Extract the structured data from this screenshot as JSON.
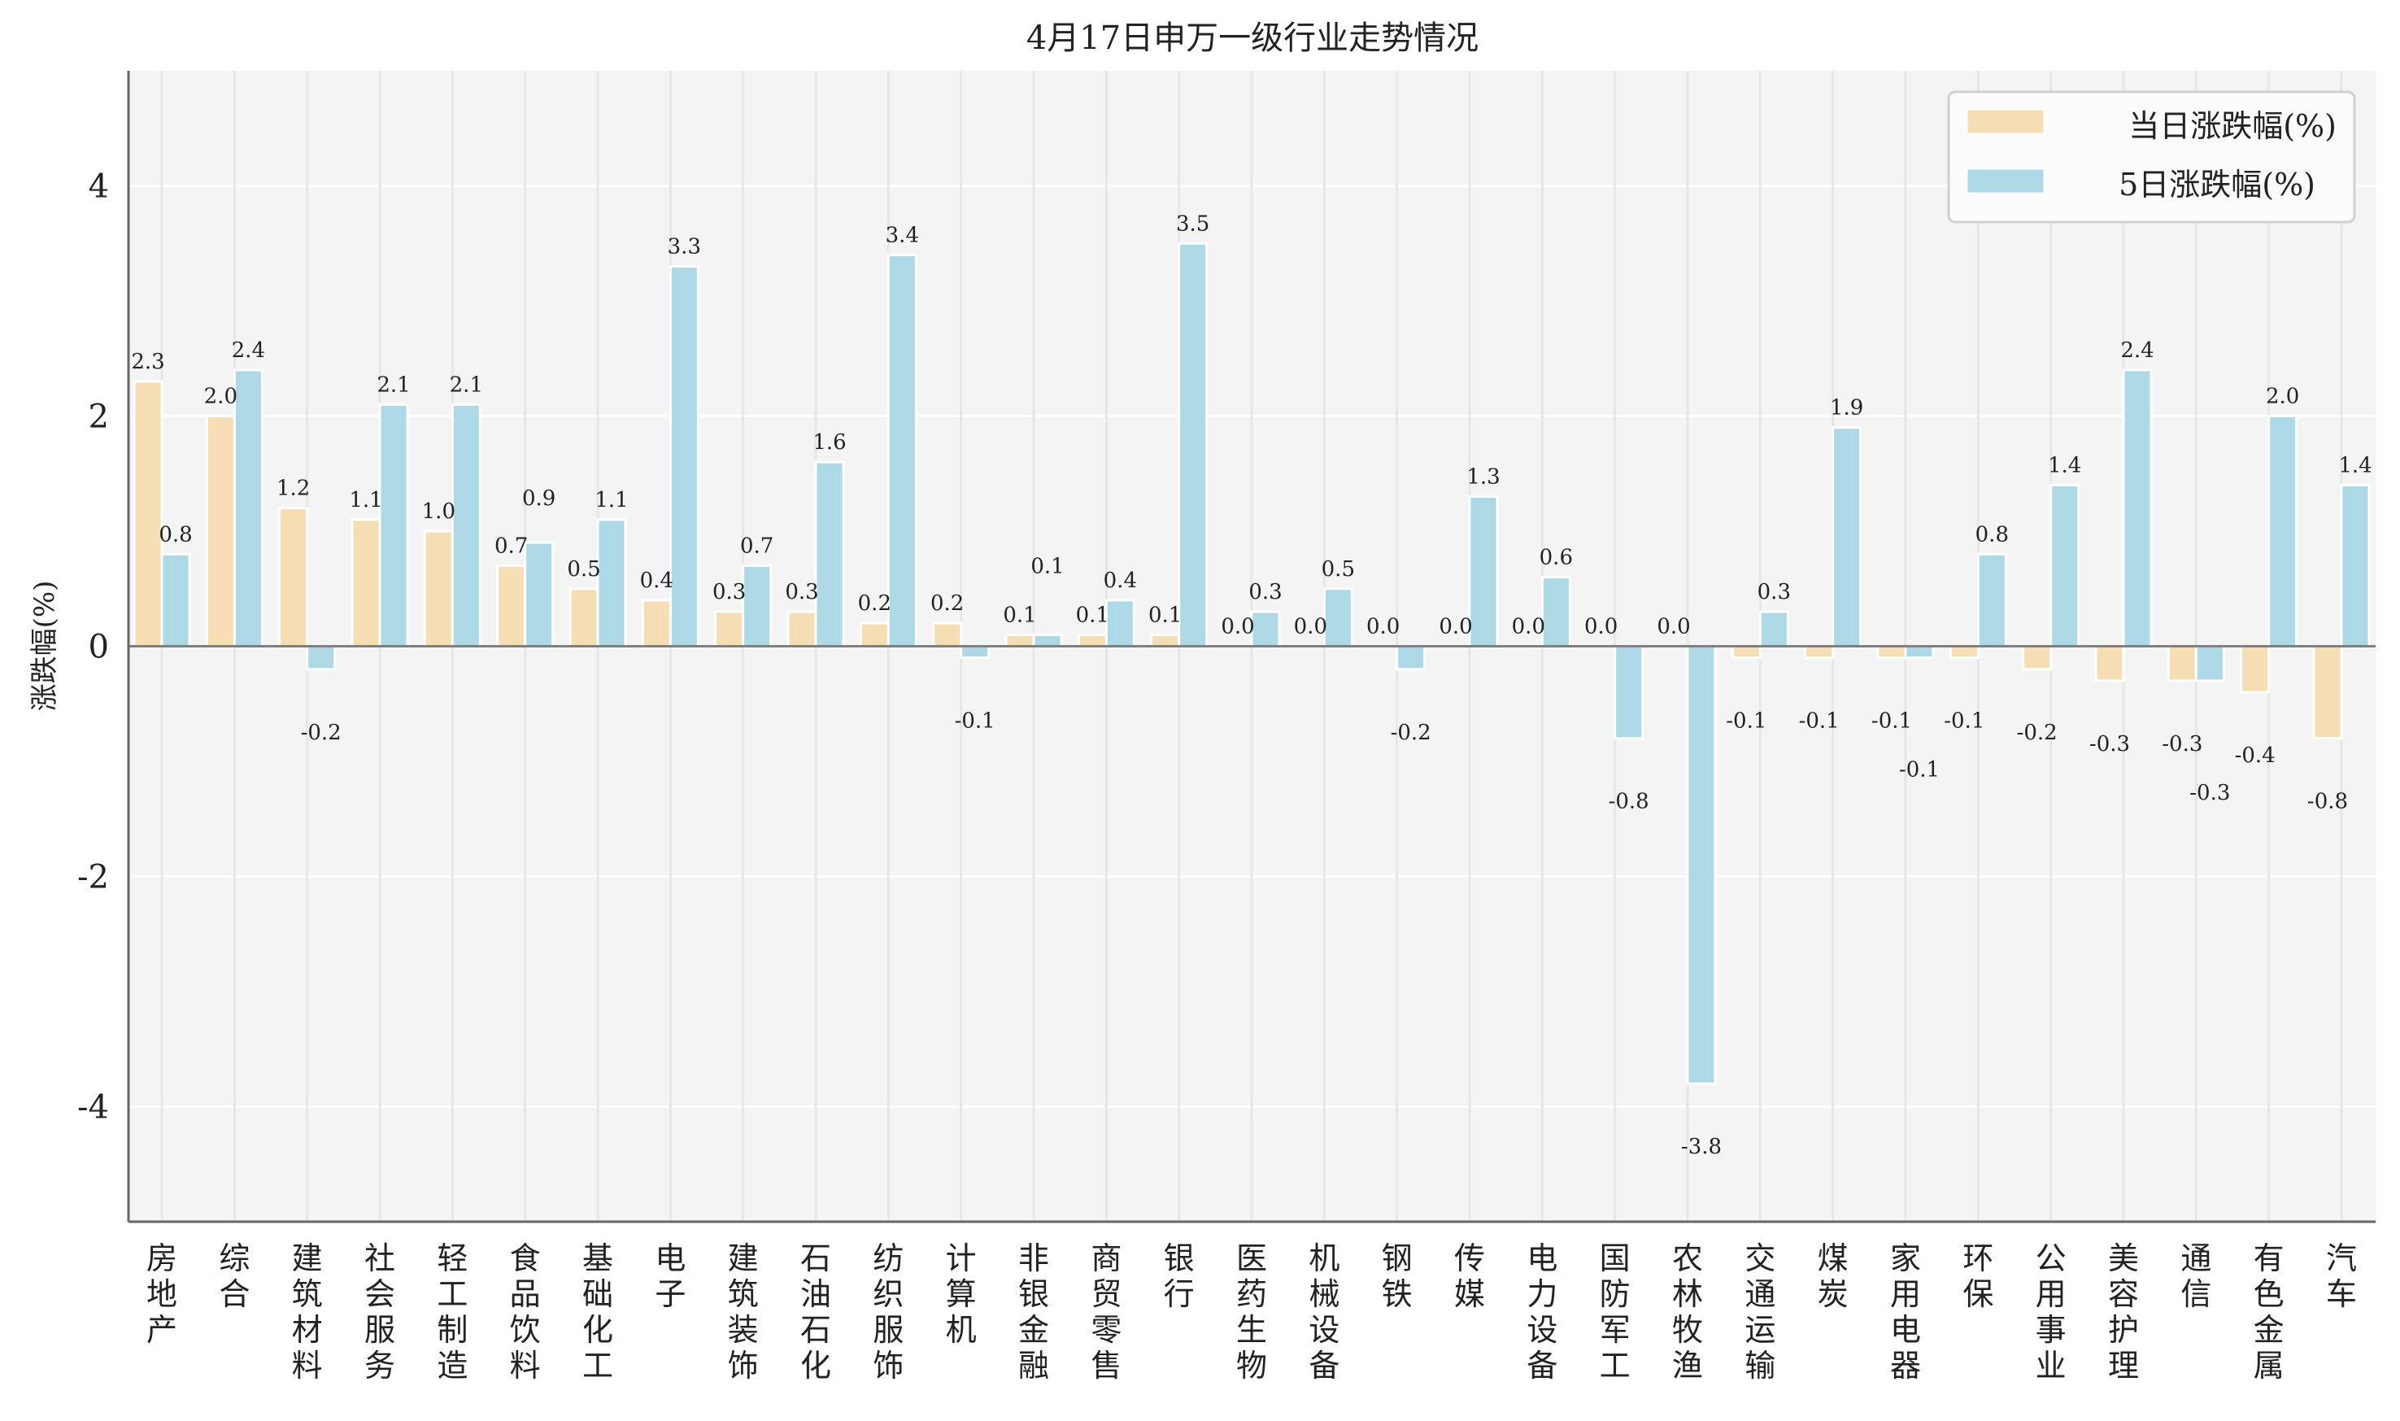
{
  "chart_data": {
    "type": "bar",
    "title": "4月17日申万一级行业走势情况",
    "xlabel": "",
    "ylabel": "涨跌幅(%)",
    "ylim": [
      -5,
      5
    ],
    "yticks": [
      -4,
      -2,
      0,
      2,
      4
    ],
    "grid": true,
    "legend_position": "top-right",
    "categories": [
      "房地产",
      "综合",
      "建筑材料",
      "社会服务",
      "轻工制造",
      "食品饮料",
      "基础化工",
      "电子",
      "建筑装饰",
      "石油石化",
      "纺织服饰",
      "计算机",
      "非银金融",
      "商贸零售",
      "银行",
      "医药生物",
      "机械设备",
      "钢铁",
      "传媒",
      "电力设备",
      "国防军工",
      "农林牧渔",
      "交通运输",
      "煤炭",
      "家用电器",
      "环保",
      "公用事业",
      "美容护理",
      "通信",
      "有色金属",
      "汽车"
    ],
    "series": [
      {
        "name": "当日涨跌幅(%)",
        "color": "#f5deb3",
        "values": [
          2.3,
          2.0,
          1.2,
          1.1,
          1.0,
          0.7,
          0.5,
          0.4,
          0.3,
          0.3,
          0.2,
          0.2,
          0.1,
          0.1,
          0.1,
          0.0,
          0.0,
          0.0,
          0.0,
          0.0,
          0.0,
          0.0,
          -0.1,
          -0.1,
          -0.1,
          -0.1,
          -0.2,
          -0.3,
          -0.3,
          -0.4,
          -0.8
        ]
      },
      {
        "name": "5日涨跌幅(%)",
        "color": "#add8e6",
        "values": [
          0.8,
          2.4,
          -0.2,
          2.1,
          2.1,
          0.9,
          1.1,
          3.3,
          0.7,
          1.6,
          3.4,
          -0.1,
          0.1,
          0.4,
          3.5,
          0.3,
          0.5,
          -0.2,
          1.3,
          0.6,
          -0.8,
          -3.8,
          0.3,
          1.9,
          -0.1,
          0.8,
          1.4,
          2.4,
          -0.3,
          2.0,
          1.4
        ]
      }
    ]
  }
}
